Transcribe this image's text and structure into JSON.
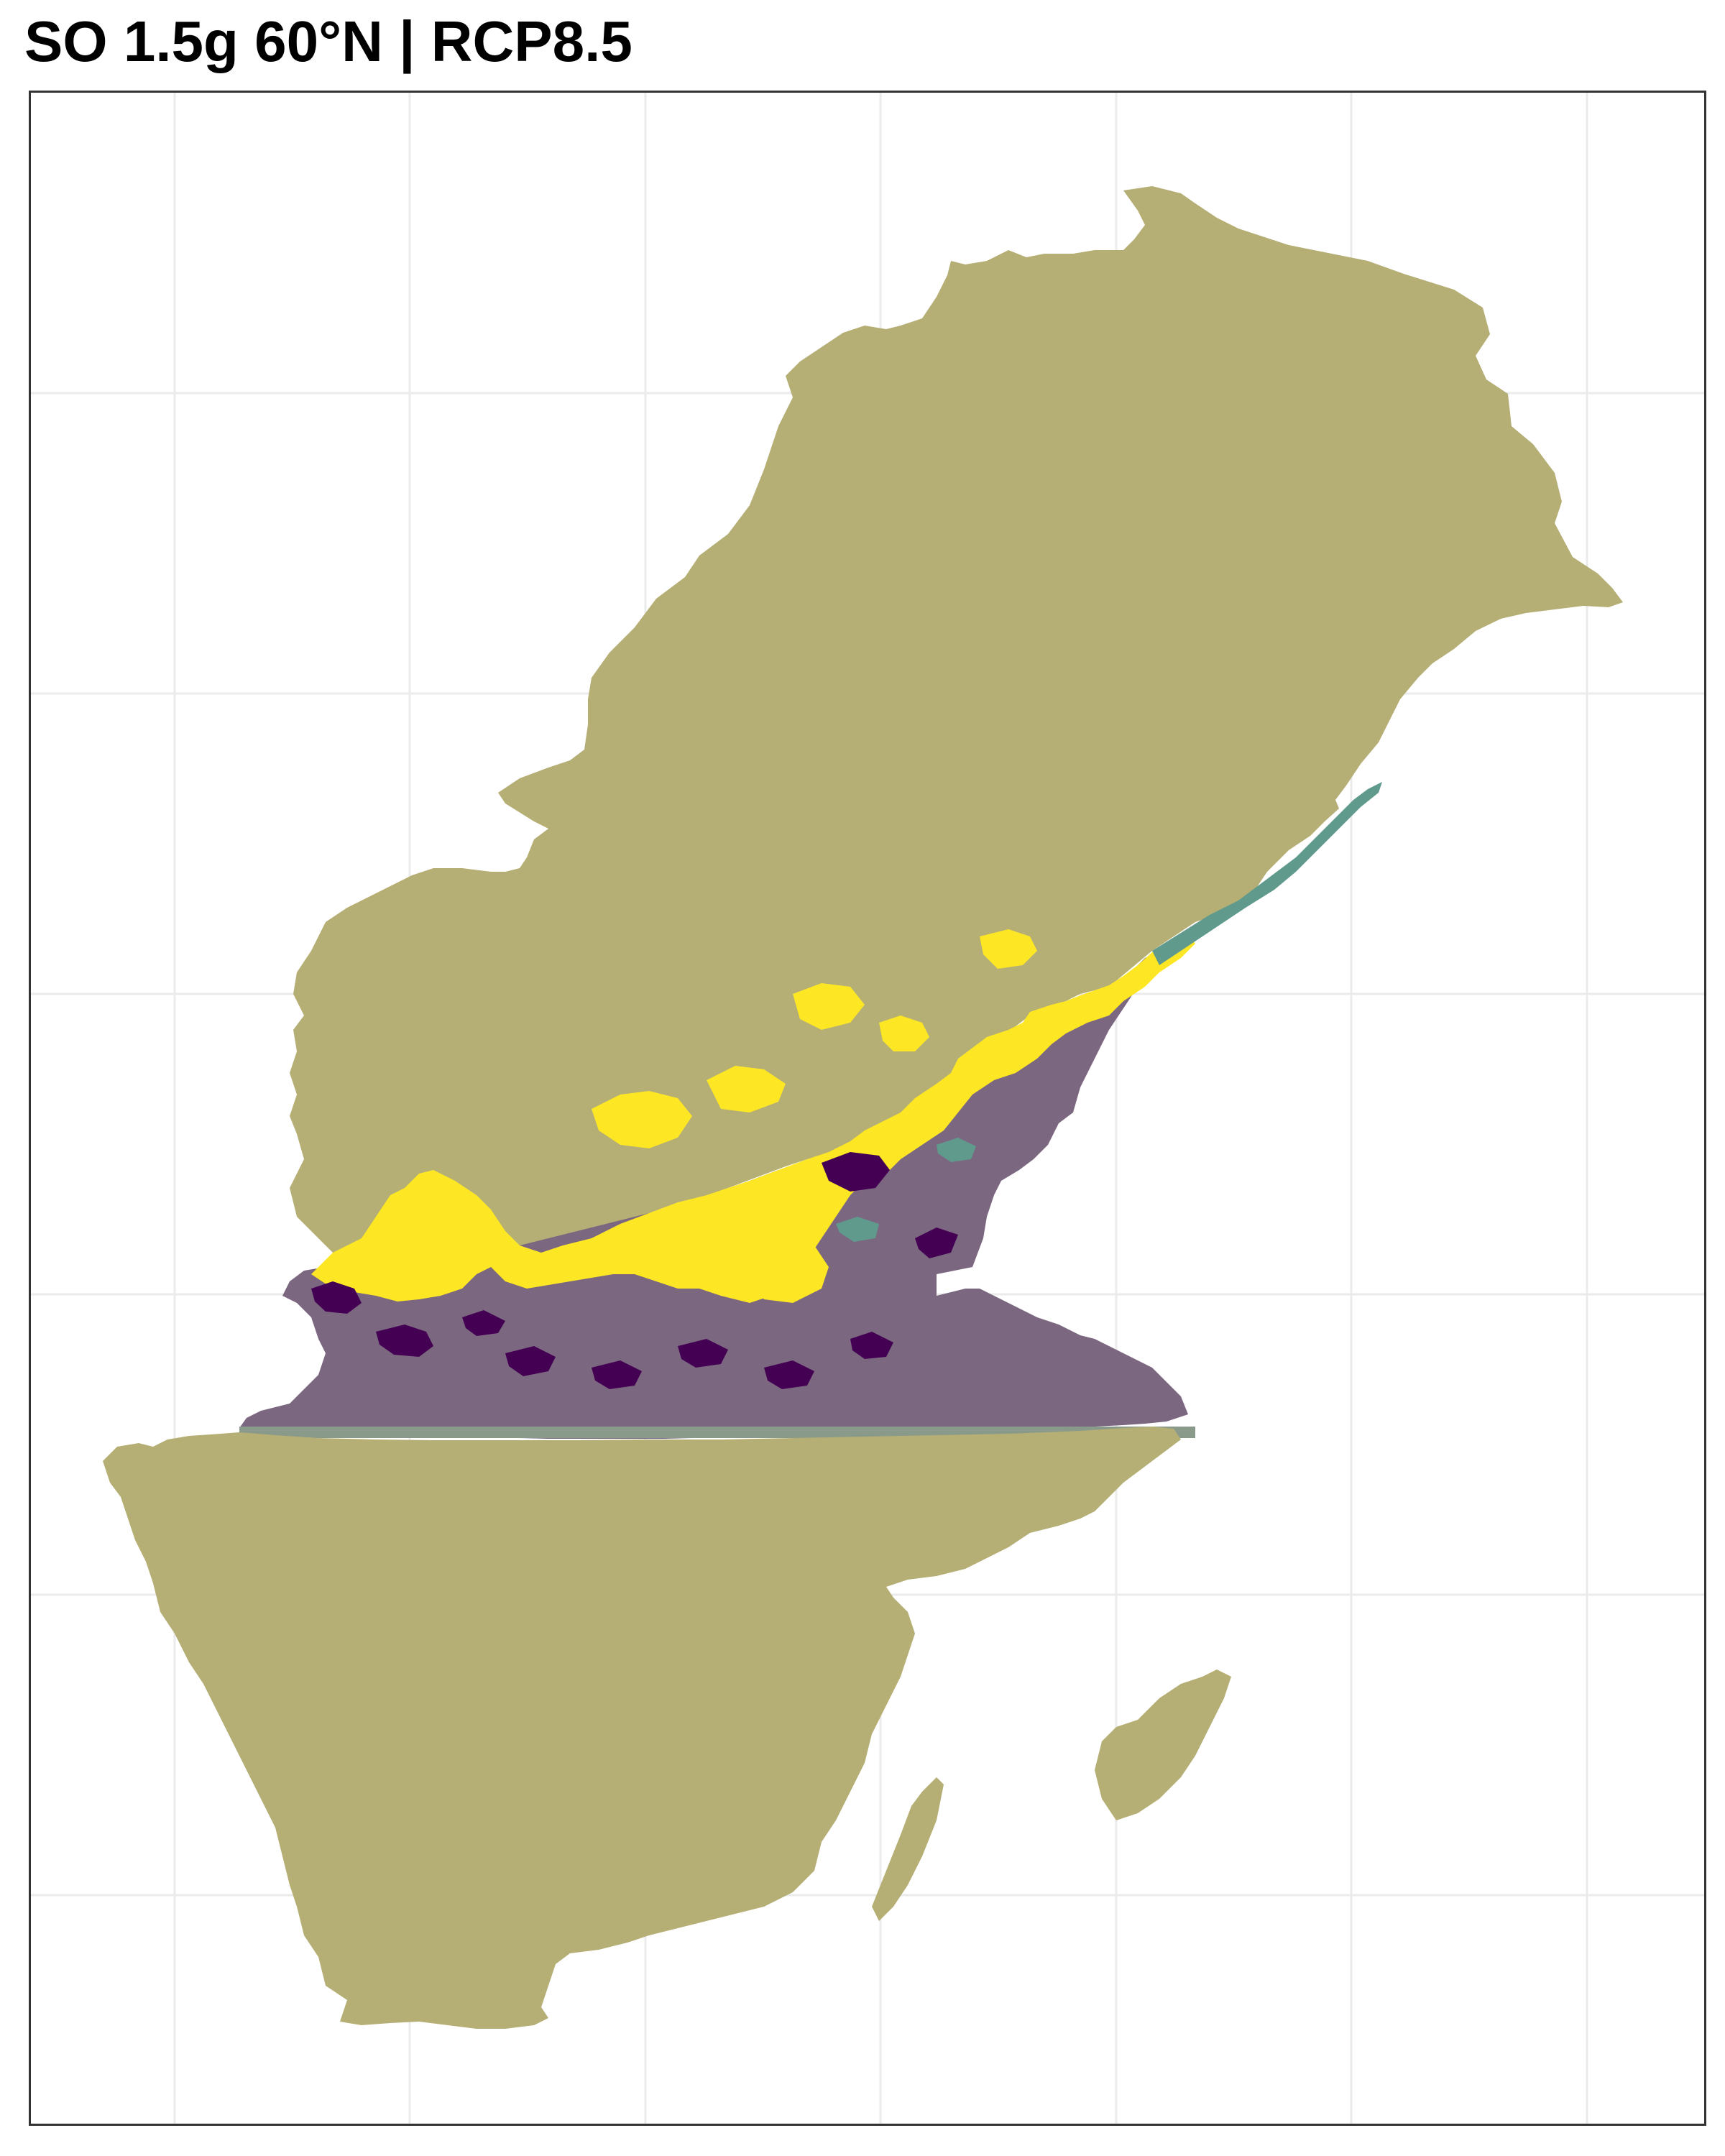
{
  "title": "SO 1.5g 60°N | RCP8.5",
  "map": {
    "type": "raster-map",
    "region": "Sweden",
    "graticule": true,
    "colors": {
      "background": "#ffffff",
      "gridline": "#ebebeb",
      "panel_border": "#333333",
      "land_default": "#b5ae75",
      "band_mauve": "#7c6780",
      "yellow": "#fde725",
      "dark_purple": "#440154",
      "teal": "#5f9a8c",
      "grey_green": "#8a9a8a"
    }
  }
}
